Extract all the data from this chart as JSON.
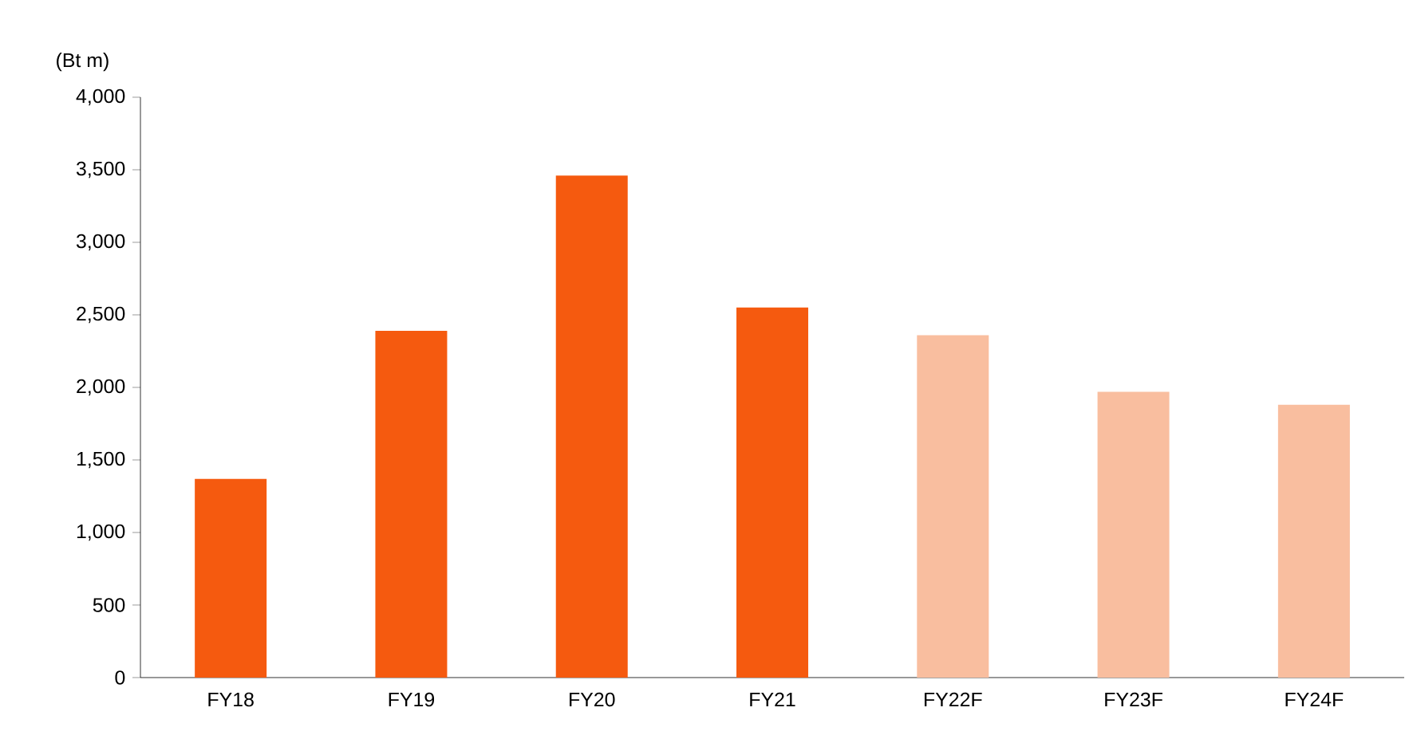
{
  "chart_data": {
    "type": "bar",
    "ylabel": "(Bt m)",
    "categories": [
      "FY18",
      "FY19",
      "FY20",
      "FY21",
      "FY22F",
      "FY23F",
      "FY24F"
    ],
    "values": [
      1370,
      2390,
      3460,
      2550,
      2360,
      1970,
      1880
    ],
    "colors": [
      "#f55a0f",
      "#f55a0f",
      "#f55a0f",
      "#f55a0f",
      "#f9be9f",
      "#f9be9f",
      "#f9be9f"
    ],
    "ylim": [
      0,
      4000
    ],
    "yticks": [
      {
        "value": 0,
        "label": "0"
      },
      {
        "value": 500,
        "label": "500"
      },
      {
        "value": 1000,
        "label": "1,000"
      },
      {
        "value": 1500,
        "label": "1,500"
      },
      {
        "value": 2000,
        "label": "2,000"
      },
      {
        "value": 2500,
        "label": "2,500"
      },
      {
        "value": 3000,
        "label": "3,000"
      },
      {
        "value": 3500,
        "label": "3,500"
      },
      {
        "value": 4000,
        "label": "4,000"
      }
    ],
    "grid": false
  }
}
